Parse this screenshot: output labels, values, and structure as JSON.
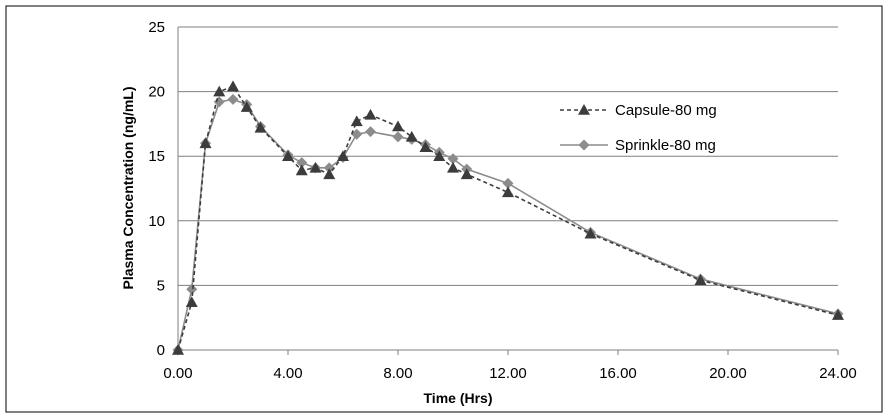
{
  "chart_data": {
    "type": "line",
    "title": "",
    "xlabel": "Time (Hrs)",
    "ylabel": "Plasma Concentration (ng/mL)",
    "xlim": [
      0,
      24
    ],
    "ylim": [
      0,
      25
    ],
    "x_ticks": [
      0,
      4,
      8,
      12,
      16,
      20,
      24
    ],
    "x_tick_labels": [
      "0.00",
      "4.00",
      "8.00",
      "12.00",
      "16.00",
      "20.00",
      "24.00"
    ],
    "y_ticks": [
      0,
      5,
      10,
      15,
      20,
      25
    ],
    "y_tick_labels": [
      "0",
      "5",
      "10",
      "15",
      "20",
      "25"
    ],
    "grid": "horizontal",
    "legend_position": "right",
    "series": [
      {
        "name": "Capsule-80 mg",
        "color": "#3c3c3c",
        "line_style": "dashed",
        "marker": "triangle",
        "x": [
          0,
          0.5,
          1,
          1.5,
          2,
          2.5,
          3,
          4,
          4.5,
          5,
          5.5,
          6,
          6.5,
          7,
          8,
          8.5,
          9,
          9.5,
          10,
          10.5,
          12,
          15,
          19,
          24
        ],
        "y": [
          0,
          3.7,
          16.0,
          20.0,
          20.4,
          18.8,
          17.2,
          15.0,
          13.9,
          14.1,
          13.6,
          15.0,
          17.7,
          18.2,
          17.3,
          16.5,
          15.7,
          15.0,
          14.1,
          13.6,
          12.2,
          9.0,
          5.4,
          2.7
        ]
      },
      {
        "name": "Sprinkle-80 mg",
        "color": "#8c8c8c",
        "line_style": "solid",
        "marker": "diamond",
        "x": [
          0,
          0.5,
          1,
          1.5,
          2,
          2.5,
          3,
          4,
          4.5,
          5,
          5.5,
          6,
          6.5,
          7,
          8,
          8.5,
          9,
          9.5,
          10,
          10.5,
          12,
          15,
          19,
          24
        ],
        "y": [
          0,
          4.7,
          16.0,
          19.2,
          19.4,
          19.0,
          17.3,
          15.1,
          14.5,
          14.1,
          14.1,
          14.9,
          16.7,
          16.9,
          16.5,
          16.3,
          15.9,
          15.3,
          14.8,
          14.0,
          12.9,
          9.1,
          5.5,
          2.8
        ]
      }
    ]
  }
}
